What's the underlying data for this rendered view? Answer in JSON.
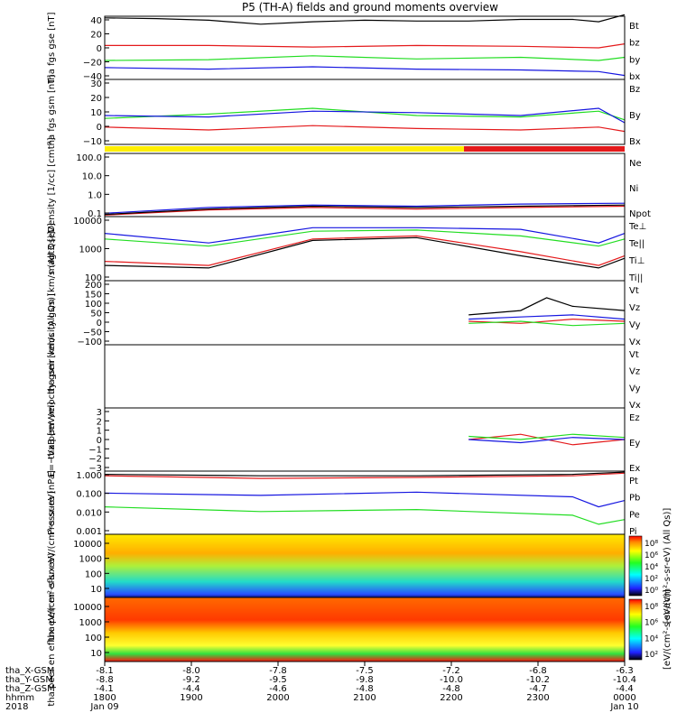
{
  "title": "P5 (TH-A) fields and ground moments overview",
  "colors": {
    "black": "#000000",
    "red": "#e41a1c",
    "green": "#22dd22",
    "blue": "#1515e0",
    "yellow": "#ffee00",
    "orange": "#ff8800"
  },
  "chart_data": [
    {
      "type": "line",
      "ylabel": "tha fgs gse [nT]",
      "ylim": [
        -40,
        40
      ],
      "ticks": [
        "40",
        "20",
        "0",
        "−20",
        "−40"
      ],
      "legend": [
        "Bt",
        "bz",
        "by",
        "bx"
      ],
      "legend_colors": [
        "black",
        "red",
        "green",
        "blue"
      ],
      "series": [
        {
          "name": "Bt",
          "x": [
            0,
            0.1,
            0.2,
            0.3,
            0.4,
            0.5,
            0.6,
            0.7,
            0.8,
            0.9,
            0.95,
            1.0
          ],
          "y": [
            38,
            37,
            35,
            30,
            33,
            35,
            34,
            34,
            36,
            36,
            33,
            42
          ]
        },
        {
          "name": "bz",
          "x": [
            0,
            0.2,
            0.4,
            0.6,
            0.8,
            0.95,
            1.0
          ],
          "y": [
            3,
            3,
            1,
            3,
            2,
            0,
            5
          ]
        },
        {
          "name": "by",
          "x": [
            0,
            0.2,
            0.4,
            0.6,
            0.8,
            0.95,
            1.0
          ],
          "y": [
            -16,
            -15,
            -10,
            -14,
            -12,
            -16,
            -12
          ]
        },
        {
          "name": "bx",
          "x": [
            0,
            0.2,
            0.4,
            0.6,
            0.8,
            0.95,
            1.0
          ],
          "y": [
            -25,
            -27,
            -24,
            -27,
            -28,
            -30,
            -35
          ]
        }
      ]
    },
    {
      "type": "line",
      "ylabel": "tha fgs gsm [nT]",
      "ylim": [
        -15,
        30
      ],
      "ticks": [
        "30",
        "20",
        "10",
        "0",
        "−10"
      ],
      "legend": [
        "Bz",
        "By",
        "Bx"
      ],
      "legend_colors": [
        "red",
        "green",
        "blue"
      ],
      "series": [
        {
          "name": "Bz",
          "x": [
            0,
            0.2,
            0.4,
            0.6,
            0.8,
            0.95,
            1.0
          ],
          "y": [
            -3,
            -5,
            -2,
            -4,
            -5,
            -3,
            -6
          ]
        },
        {
          "name": "By",
          "x": [
            0,
            0.2,
            0.4,
            0.6,
            0.8,
            0.95,
            1.0
          ],
          "y": [
            3,
            6,
            10,
            5,
            4,
            8,
            2
          ]
        },
        {
          "name": "Bx",
          "x": [
            0,
            0.2,
            0.4,
            0.6,
            0.8,
            0.95,
            1.0
          ],
          "y": [
            5,
            4,
            8,
            7,
            5,
            10,
            0
          ]
        }
      ]
    },
    {
      "type": "line",
      "ylabel": "Density [1/cc] [cm⁻³]",
      "log": true,
      "ylim": [
        0.1,
        200
      ],
      "ticks": [
        "100.0",
        "10.0",
        "1.0",
        "0.1"
      ],
      "legend": [
        "Ne",
        "Ni",
        "Npot"
      ],
      "legend_colors": [
        "red",
        "black",
        "blue"
      ],
      "series": [
        {
          "name": "Ne",
          "x": [
            0,
            0.2,
            0.4,
            0.6,
            0.8,
            1.0
          ],
          "y": [
            0.12,
            0.22,
            0.3,
            0.25,
            0.3,
            0.35
          ]
        },
        {
          "name": "Ni",
          "x": [
            0,
            0.2,
            0.4,
            0.6,
            0.8,
            1.0
          ],
          "y": [
            0.13,
            0.25,
            0.35,
            0.3,
            0.35,
            0.4
          ]
        },
        {
          "name": "Npot",
          "x": [
            0,
            0.2,
            0.4,
            0.6,
            0.8,
            1.0
          ],
          "y": [
            0.15,
            0.3,
            0.4,
            0.35,
            0.45,
            0.5
          ]
        }
      ]
    },
    {
      "type": "line",
      "ylabel": "magt3 [eV]",
      "log": true,
      "ylim": [
        100,
        10000
      ],
      "ticks": [
        "10000",
        "1000",
        "100"
      ],
      "legend": [
        "Te⊥",
        "Te||",
        "Ti⊥",
        "Ti||"
      ],
      "legend_colors": [
        "red",
        "black",
        "blue",
        "green"
      ],
      "series": [
        {
          "name": "Te⊥",
          "x": [
            0,
            0.2,
            0.4,
            0.6,
            0.8,
            0.95,
            1.0
          ],
          "y": [
            400,
            300,
            2000,
            2500,
            800,
            300,
            600
          ]
        },
        {
          "name": "Te||",
          "x": [
            0,
            0.2,
            0.4,
            0.6,
            0.8,
            0.95,
            1.0
          ],
          "y": [
            300,
            250,
            1800,
            2200,
            600,
            250,
            500
          ]
        },
        {
          "name": "Ti⊥",
          "x": [
            0,
            0.2,
            0.4,
            0.6,
            0.8,
            0.95,
            1.0
          ],
          "y": [
            3000,
            1500,
            4500,
            4500,
            4000,
            1500,
            3000
          ]
        },
        {
          "name": "Ti||",
          "x": [
            0,
            0.2,
            0.4,
            0.6,
            0.8,
            0.95,
            1.0
          ],
          "y": [
            2000,
            1200,
            3500,
            3800,
            2500,
            1200,
            2000
          ]
        }
      ]
    },
    {
      "type": "line",
      "ylabel": "tha peir velocity gsm [km/s (All Qs)]",
      "ylim": [
        -100,
        200
      ],
      "ticks": [
        "200",
        "150",
        "100",
        "50",
        "0",
        "−50",
        "−100"
      ],
      "legend": [
        "Vt",
        "Vz",
        "Vy",
        "Vx"
      ],
      "legend_colors": [
        "black",
        "red",
        "green",
        "blue"
      ],
      "series": [
        {
          "name": "Vt",
          "x": [
            0.7,
            0.8,
            0.85,
            0.9,
            1.0
          ],
          "y": [
            40,
            60,
            120,
            80,
            60
          ]
        },
        {
          "name": "Vz",
          "x": [
            0.7,
            0.8,
            0.9,
            1.0
          ],
          "y": [
            10,
            0,
            20,
            10
          ]
        },
        {
          "name": "Vy",
          "x": [
            0.7,
            0.8,
            0.9,
            1.0
          ],
          "y": [
            0,
            10,
            -10,
            0
          ]
        },
        {
          "name": "Vx",
          "x": [
            0.7,
            0.8,
            0.9,
            1.0
          ],
          "y": [
            20,
            30,
            40,
            20
          ]
        }
      ]
    },
    {
      "type": "line",
      "ylabel": "tha peer velocity gsm [km/s (All Qs)]",
      "legend": [
        "Vt",
        "Vz",
        "Vy",
        "Vx"
      ],
      "legend_colors": [
        "black",
        "red",
        "green",
        "blue"
      ],
      "series": []
    },
    {
      "type": "line",
      "ylabel": "E=−VxB [mV/m]",
      "ylim": [
        -3,
        3
      ],
      "ticks": [
        "3",
        "2",
        "1",
        "0",
        "−1",
        "−2",
        "−3"
      ],
      "legend": [
        "Ez",
        "Ey",
        "Ex"
      ],
      "legend_colors": [
        "red",
        "green",
        "blue"
      ],
      "series": [
        {
          "name": "Ez",
          "x": [
            0.7,
            0.8,
            0.9,
            1.0
          ],
          "y": [
            0,
            0.5,
            -0.5,
            0
          ]
        },
        {
          "name": "Ey",
          "x": [
            0.7,
            0.8,
            0.9,
            1.0
          ],
          "y": [
            0.3,
            0,
            0.5,
            0.2
          ]
        },
        {
          "name": "Ex",
          "x": [
            0.7,
            0.8,
            0.9,
            1.0
          ],
          "y": [
            0,
            -0.3,
            0.2,
            0
          ]
        }
      ]
    },
    {
      "type": "line",
      "ylabel": "Pressure [nPa]",
      "log": true,
      "ylim": [
        0.001,
        1
      ],
      "ticks": [
        "1.000",
        "0.100",
        "0.010",
        "0.001"
      ],
      "legend": [
        "Pt",
        "Pb",
        "Pe",
        "Pi"
      ],
      "legend_colors": [
        "black",
        "red",
        "green",
        "blue"
      ],
      "series": [
        {
          "name": "Pt",
          "x": [
            0,
            0.3,
            0.6,
            0.9,
            1.0
          ],
          "y": [
            0.7,
            0.6,
            0.6,
            0.7,
            0.9
          ]
        },
        {
          "name": "Pb",
          "x": [
            0,
            0.3,
            0.6,
            0.9,
            1.0
          ],
          "y": [
            0.6,
            0.45,
            0.5,
            0.6,
            0.8
          ]
        },
        {
          "name": "Pe",
          "x": [
            0,
            0.3,
            0.6,
            0.9,
            0.95,
            1.0
          ],
          "y": [
            0.02,
            0.012,
            0.015,
            0.008,
            0.003,
            0.005
          ]
        },
        {
          "name": "Pi",
          "x": [
            0,
            0.3,
            0.6,
            0.9,
            0.95,
            1.0
          ],
          "y": [
            0.09,
            0.07,
            0.1,
            0.06,
            0.02,
            0.04
          ]
        }
      ]
    },
    {
      "type": "heatmap",
      "ylabel": "tha peir en eflux eV/(cm²-s-sr-eV)",
      "ticks": [
        "10000",
        "1000",
        "100",
        "10"
      ],
      "colorbar_label": "[eV/(cm²-s-sr-eV) (All Qs)]",
      "colorbar_ticks": [
        "10⁸",
        "10⁶",
        "10⁴",
        "10²",
        "10⁰"
      ]
    },
    {
      "type": "heatmap",
      "ylabel": "tha peer en eflux eV/(cm²-s-sr-eV)",
      "ticks": [
        "10000",
        "1000",
        "100",
        "10"
      ],
      "colorbar_label": "[eV/(cm²-s-sr-eV)]",
      "colorbar_ticks": [
        "10⁸",
        "10⁶",
        "10⁴",
        "10²"
      ]
    }
  ],
  "footer": {
    "row_labels": [
      "tha_X-GSM",
      "tha_Y-GSM",
      "tha_Z-GSM",
      "hhmm",
      "2018"
    ],
    "columns": [
      [
        "-8.1",
        "-8.8",
        "-4.1",
        "1800",
        "Jan 09"
      ],
      [
        "-8.0",
        "-9.2",
        "-4.4",
        "1900",
        ""
      ],
      [
        "-7.8",
        "-9.5",
        "-4.6",
        "2000",
        ""
      ],
      [
        "-7.5",
        "-9.8",
        "-4.8",
        "2100",
        ""
      ],
      [
        "-7.2",
        "-10.0",
        "-4.8",
        "2200",
        ""
      ],
      [
        "-6.8",
        "-10.2",
        "-4.7",
        "2300",
        ""
      ],
      [
        "-6.3",
        "-10.4",
        "-4.4",
        "0000",
        "Jan 10"
      ]
    ]
  }
}
